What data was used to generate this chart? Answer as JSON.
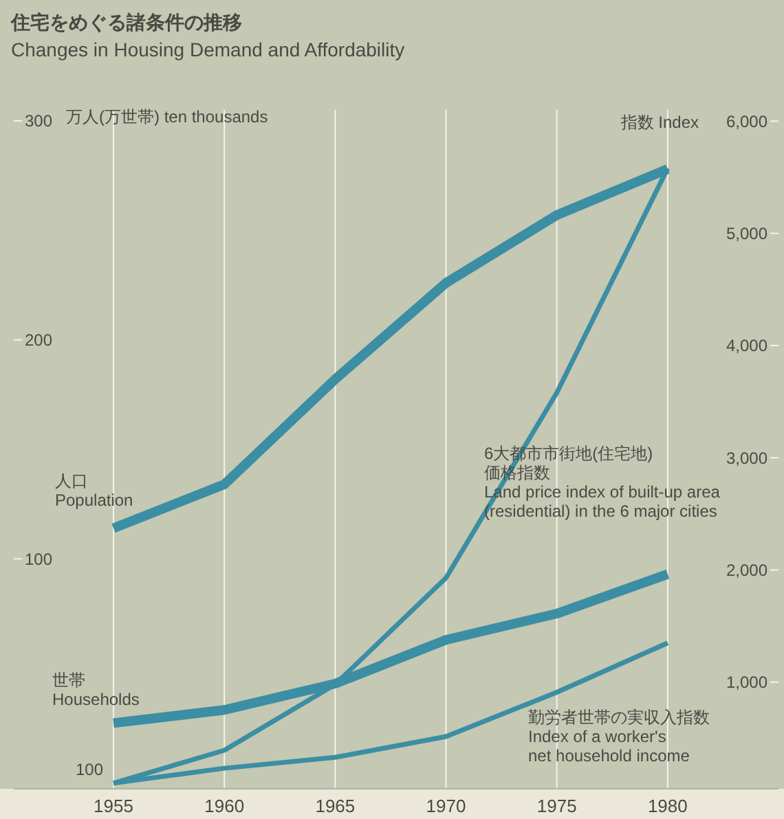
{
  "chart_data": {
    "type": "line",
    "title": "住宅をめぐる諸条件の推移",
    "subtitle": "Changes in Housing Demand and Affordability",
    "ylabel": "万人(万世帯) ten thousands",
    "y2label": "指数 Index",
    "x": [
      1955,
      1960,
      1965,
      1970,
      1975,
      1980
    ],
    "xlim": [
      1950.5,
      1985
    ],
    "xticks": [
      1955,
      1960,
      1965,
      1970,
      1975,
      1980
    ],
    "ylim": [
      -5,
      305
    ],
    "yticks": [
      100,
      200,
      300
    ],
    "y2lim": [
      50,
      6100
    ],
    "y2ticks": [
      {
        "value": 1000,
        "label": "1,000"
      },
      {
        "value": 2000,
        "label": "2,000"
      },
      {
        "value": 3000,
        "label": "3,000"
      },
      {
        "value": 4000,
        "label": "4,000"
      },
      {
        "value": 5000,
        "label": "5,000"
      },
      {
        "value": 6000,
        "label": "6,000"
      }
    ],
    "series": [
      {
        "name": "人口\nPopulation",
        "color": "#3b8ea3",
        "values": [
          114,
          134,
          182,
          226,
          257,
          278
        ]
      },
      {
        "name": "世帯\nHouseholds",
        "color": "#3b8ea3",
        "values": [
          25,
          31,
          43,
          63,
          75,
          93
        ]
      },
      {
        "name": "6大都市市街地(住宅地)\n価格指数\nLand price index of built-up area\n(residential) in the 6 major cities",
        "color": "#3b8ea3",
        "axis": "y2",
        "values": [
          100,
          393,
          980,
          1930,
          3580,
          5580
        ]
      },
      {
        "name": "勤労者世帯の実収入指数\nIndex of a worker's\nnet household income",
        "color": "#3b8ea3",
        "axis": "y2",
        "values": [
          100,
          233,
          330,
          515,
          910,
          1350
        ]
      }
    ],
    "annotations": [
      "100"
    ],
    "grid": "x",
    "legend": false,
    "marker": "none",
    "line_style": "solid"
  }
}
